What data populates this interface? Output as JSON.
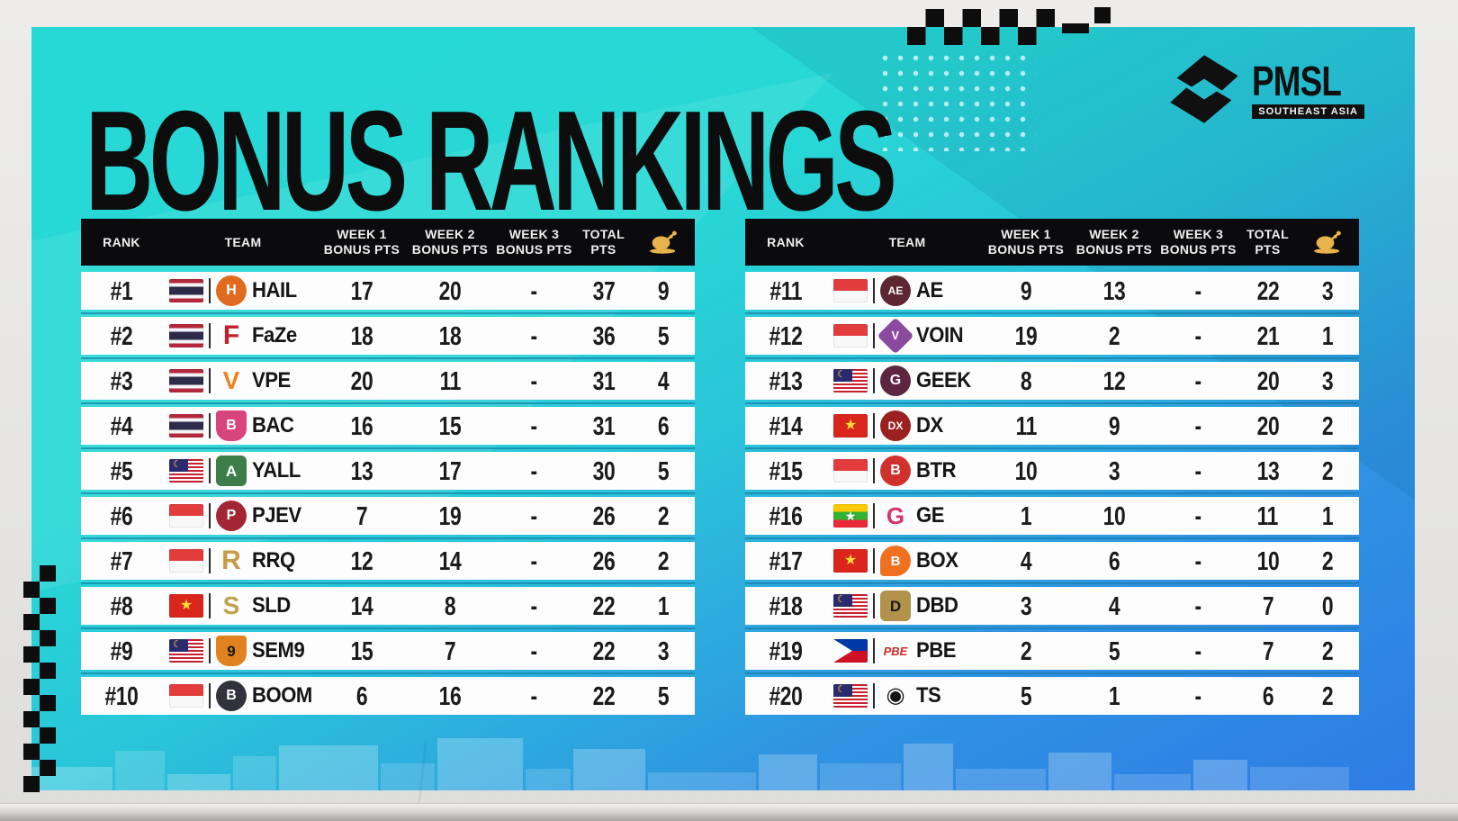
{
  "title": "BONUS RANKINGS",
  "brand": {
    "name": "PMSL",
    "region": "SOUTHEAST ASIA"
  },
  "colors": {
    "card_teal": "#27d9d6",
    "card_blue": "#2e7ce5",
    "header_bg": "#0b0b0d",
    "row_bg": "#fdfdfd",
    "chicken_gold": "#e8b34c",
    "title_text": "#0d0d0d"
  },
  "columns": [
    {
      "key": "rank",
      "l1": "RANK"
    },
    {
      "key": "team",
      "l1": "TEAM"
    },
    {
      "key": "w1",
      "l1": "WEEK 1",
      "l2": "BONUS PTS"
    },
    {
      "key": "w2",
      "l1": "WEEK 2",
      "l2": "BONUS PTS"
    },
    {
      "key": "w3",
      "l1": "WEEK 3",
      "l2": "BONUS PTS"
    },
    {
      "key": "total",
      "l1": "TOTAL",
      "l2": "PTS"
    },
    {
      "key": "chicken",
      "icon": "chicken-dinner-icon"
    }
  ],
  "tables": [
    {
      "name": "rankings-table-1-10",
      "rows": [
        {
          "rank": "#1",
          "country": "TH",
          "team": "HAIL",
          "week1": "17",
          "week2": "20",
          "week3": "-",
          "total": "37",
          "chickens": "9",
          "logo": {
            "shape": "circle",
            "bg": "#e06a1e",
            "text": "H",
            "color": "#ffffff",
            "size": 16
          }
        },
        {
          "rank": "#2",
          "country": "TH",
          "team": "FaZe",
          "week1": "18",
          "week2": "18",
          "week3": "-",
          "total": "36",
          "chickens": "5",
          "logo": {
            "shape": "plain",
            "bg": "",
            "text": "F",
            "color": "#c2202c",
            "size": 30
          }
        },
        {
          "rank": "#3",
          "country": "TH",
          "team": "VPE",
          "week1": "20",
          "week2": "11",
          "week3": "-",
          "total": "31",
          "chickens": "4",
          "logo": {
            "shape": "plain",
            "bg": "",
            "text": "V",
            "color": "#f08220",
            "size": 28
          }
        },
        {
          "rank": "#4",
          "country": "TH",
          "team": "BAC",
          "week1": "16",
          "week2": "15",
          "week3": "-",
          "total": "31",
          "chickens": "6",
          "logo": {
            "shape": "shield",
            "bg": "#d8447c",
            "text": "B",
            "color": "#ffffff",
            "size": 16
          }
        },
        {
          "rank": "#5",
          "country": "MY",
          "team": "YALL",
          "week1": "13",
          "week2": "17",
          "week3": "-",
          "total": "30",
          "chickens": "5",
          "logo": {
            "shape": "square",
            "bg": "#3f7d48",
            "text": "A",
            "color": "#ffffff",
            "size": 17
          }
        },
        {
          "rank": "#6",
          "country": "ID",
          "team": "PJEV",
          "week1": "7",
          "week2": "19",
          "week3": "-",
          "total": "26",
          "chickens": "2",
          "logo": {
            "shape": "circle",
            "bg": "#a32634",
            "text": "P",
            "color": "#ffffff",
            "size": 16
          }
        },
        {
          "rank": "#7",
          "country": "ID",
          "team": "RRQ",
          "week1": "12",
          "week2": "14",
          "week3": "-",
          "total": "26",
          "chickens": "2",
          "logo": {
            "shape": "plain",
            "bg": "",
            "text": "R",
            "color": "#c99a46",
            "size": 30
          }
        },
        {
          "rank": "#8",
          "country": "VN",
          "team": "SLD",
          "week1": "14",
          "week2": "8",
          "week3": "-",
          "total": "22",
          "chickens": "1",
          "logo": {
            "shape": "plain",
            "bg": "",
            "text": "S",
            "color": "#bfa14f",
            "size": 28
          }
        },
        {
          "rank": "#9",
          "country": "MY",
          "team": "SEM9",
          "week1": "15",
          "week2": "7",
          "week3": "-",
          "total": "22",
          "chickens": "3",
          "logo": {
            "shape": "shield",
            "bg": "#e0821f",
            "text": "9",
            "color": "#151515",
            "size": 17
          }
        },
        {
          "rank": "#10",
          "country": "ID",
          "team": "BOOM",
          "week1": "6",
          "week2": "16",
          "week3": "-",
          "total": "22",
          "chickens": "5",
          "logo": {
            "shape": "circle",
            "bg": "#32323c",
            "text": "B",
            "color": "#ffffff",
            "size": 16
          }
        }
      ]
    },
    {
      "name": "rankings-table-11-20",
      "rows": [
        {
          "rank": "#11",
          "country": "ID",
          "team": "AE",
          "week1": "9",
          "week2": "13",
          "week3": "-",
          "total": "22",
          "chickens": "3",
          "logo": {
            "shape": "circle",
            "bg": "#5d2732",
            "text": "AE",
            "color": "#ffffff",
            "size": 12
          }
        },
        {
          "rank": "#12",
          "country": "ID",
          "team": "VOIN",
          "week1": "19",
          "week2": "2",
          "week3": "-",
          "total": "21",
          "chickens": "1",
          "logo": {
            "shape": "diamond",
            "bg": "#8a4a9e",
            "text": "V",
            "color": "#ffffff",
            "size": 15
          }
        },
        {
          "rank": "#13",
          "country": "MY",
          "team": "GEEK",
          "week1": "8",
          "week2": "12",
          "week3": "-",
          "total": "20",
          "chickens": "3",
          "logo": {
            "shape": "circle",
            "bg": "#5d2540",
            "text": "G",
            "color": "#ffffff",
            "size": 16
          }
        },
        {
          "rank": "#14",
          "country": "VN",
          "team": "DX",
          "week1": "11",
          "week2": "9",
          "week3": "-",
          "total": "20",
          "chickens": "2",
          "logo": {
            "shape": "circle",
            "bg": "#9c2020",
            "text": "DX",
            "color": "#ffffff",
            "size": 12
          }
        },
        {
          "rank": "#15",
          "country": "ID",
          "team": "BTR",
          "week1": "10",
          "week2": "3",
          "week3": "-",
          "total": "13",
          "chickens": "2",
          "logo": {
            "shape": "circle",
            "bg": "#d0312d",
            "text": "B",
            "color": "#ffffff",
            "size": 16
          }
        },
        {
          "rank": "#16",
          "country": "MM",
          "team": "GE",
          "week1": "1",
          "week2": "10",
          "week3": "-",
          "total": "11",
          "chickens": "1",
          "logo": {
            "shape": "plain",
            "bg": "",
            "text": "G",
            "color": "#d6336c",
            "size": 26
          }
        },
        {
          "rank": "#17",
          "country": "VN",
          "team": "BOX",
          "week1": "4",
          "week2": "6",
          "week3": "-",
          "total": "10",
          "chickens": "2",
          "logo": {
            "shape": "blob",
            "bg": "#f07020",
            "text": "B",
            "color": "#ffffff",
            "size": 15
          }
        },
        {
          "rank": "#18",
          "country": "MY",
          "team": "DBD",
          "week1": "3",
          "week2": "4",
          "week3": "-",
          "total": "7",
          "chickens": "0",
          "logo": {
            "shape": "square",
            "bg": "#b2914a",
            "text": "D",
            "color": "#1a1a1a",
            "size": 17
          }
        },
        {
          "rank": "#19",
          "country": "PH",
          "team": "PBE",
          "week1": "2",
          "week2": "5",
          "week3": "-",
          "total": "7",
          "chickens": "2",
          "logo": {
            "shape": "plain",
            "bg": "",
            "text": "PBE",
            "color": "#d02828",
            "size": 13,
            "italic": true
          }
        },
        {
          "rank": "#20",
          "country": "MY",
          "team": "TS",
          "week1": "5",
          "week2": "1",
          "week3": "-",
          "total": "6",
          "chickens": "2",
          "logo": {
            "shape": "plain",
            "bg": "",
            "text": "◉",
            "color": "#141414",
            "size": 24
          }
        }
      ]
    }
  ]
}
